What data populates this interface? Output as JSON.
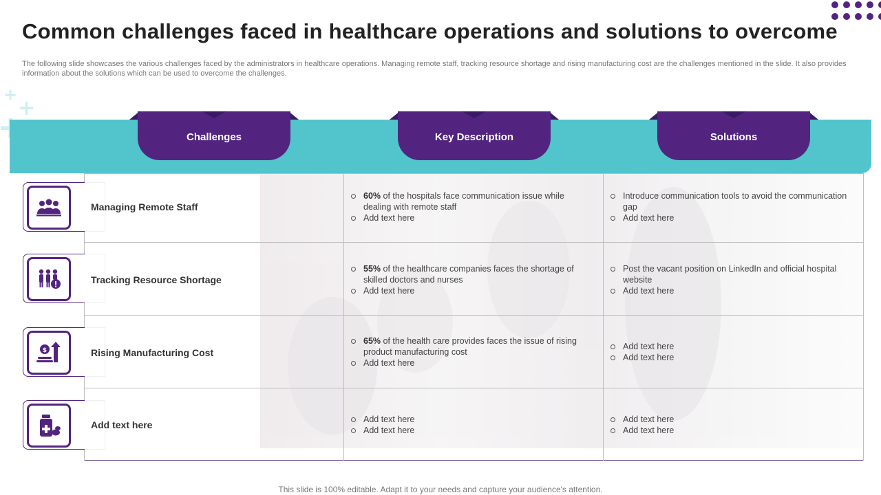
{
  "title": "Common challenges faced in healthcare operations and solutions to overcome",
  "subtitle": "The following slide showcases the various challenges faced by the administrators in healthcare operations. Managing remote staff, tracking resource shortage and rising manufacturing cost are the challenges mentioned in the slide. It also provides information about the solutions which can be used to overcome the challenges.",
  "headers": {
    "challenges": "Challenges",
    "description": "Key Description",
    "solutions": "Solutions"
  },
  "rows": [
    {
      "challenge": "Managing Remote Staff",
      "icon": "remote-staff-icon",
      "desc_bold": "60%",
      "desc_text": " of the hospitals face communication issue while dealing with remote staff",
      "desc_extra": "Add text here",
      "sol_1": "Introduce communication tools to avoid the communication gap",
      "sol_2": "Add text here"
    },
    {
      "challenge": "Tracking Resource Shortage",
      "icon": "resource-shortage-icon",
      "desc_bold": "55%",
      "desc_text": " of the healthcare companies faces the shortage of skilled doctors and nurses",
      "desc_extra": "Add text here",
      "sol_1": "Post the vacant position on LinkedIn and official hospital website",
      "sol_2": "Add text here"
    },
    {
      "challenge": "Rising Manufacturing Cost",
      "icon": "rising-cost-icon",
      "desc_bold": "65%",
      "desc_text": " of the health care provides  faces the issue of rising product manufacturing cost",
      "desc_extra": "Add text here",
      "sol_1": "Add text here",
      "sol_2": "Add text here"
    },
    {
      "challenge": "Add text here",
      "icon": "medicine-icon",
      "desc_1": "Add text here",
      "desc_2": "Add text here",
      "sol_1": "Add text here",
      "sol_2": "Add text here"
    }
  ],
  "footer": "This slide is 100% editable. Adapt it to your needs and capture your audience's attention.",
  "colors": {
    "purple": "#52247f",
    "teal": "#52c4cb"
  }
}
